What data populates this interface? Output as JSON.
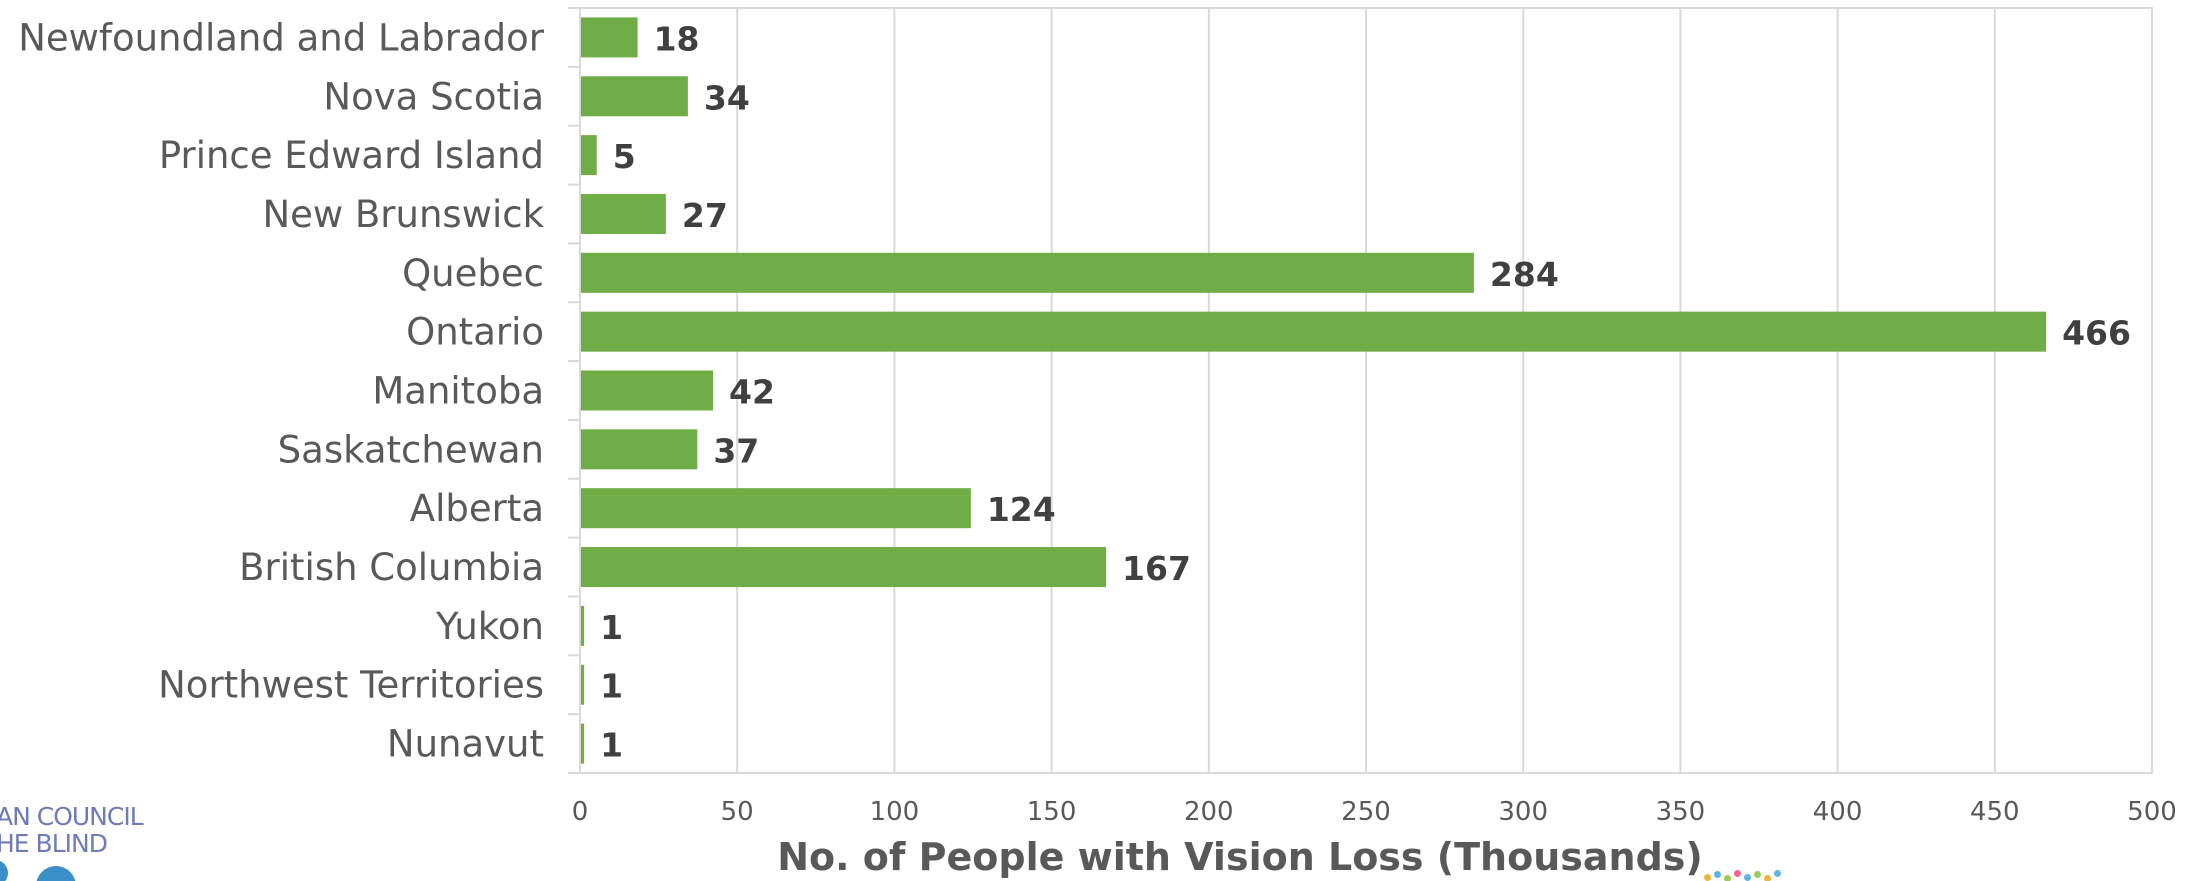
{
  "chart_data": {
    "type": "bar",
    "orientation": "horizontal",
    "categories": [
      "Newfoundland and Labrador",
      "Nova Scotia",
      "Prince Edward Island",
      "New Brunswick",
      "Quebec",
      "Ontario",
      "Manitoba",
      "Saskatchewan",
      "Alberta",
      "British Columbia",
      "Yukon",
      "Northwest Territories",
      "Nunavut"
    ],
    "values": [
      18,
      34,
      5,
      27,
      284,
      466,
      42,
      37,
      124,
      167,
      1,
      1,
      1
    ],
    "data_labels": [
      "18",
      "34",
      "5",
      "27",
      "284",
      "466",
      "42",
      "37",
      "124",
      "167",
      "1",
      "1",
      "1"
    ],
    "xlabel": "No. of People with Vision Loss (Thousands)",
    "ylabel": "",
    "xlim": [
      0,
      500
    ],
    "xticks": [
      0,
      50,
      100,
      150,
      200,
      250,
      300,
      350,
      400,
      450,
      500
    ],
    "grid": "vertical",
    "legend": "none",
    "bar_color": "#70ad47"
  },
  "logo": {
    "line1": "AN COUNCIL",
    "line2": "HE BLIND"
  },
  "colors": {
    "logo_text": "#6d7bb9",
    "logo_accent": "#3a8fc8"
  }
}
